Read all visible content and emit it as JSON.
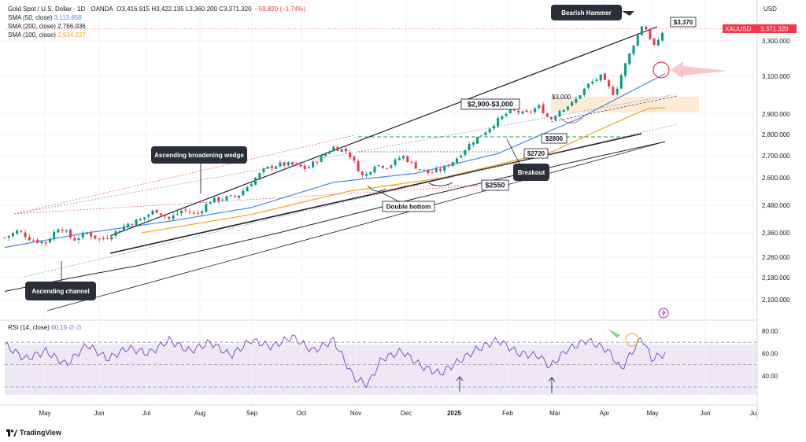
{
  "legend": {
    "symbol": "Gold Spot / U.S. Dollar · 1D · OANDA",
    "ohlc": "O3,416.915  H3,422.135  L3,360.200  C3,371.320",
    "change": "−59.820 (−1.74%)",
    "sma50_label": "SMA (50, close)",
    "sma50_value": "3,113.658",
    "sma200_label": "SMA (200, close)",
    "sma200_value": "2,766.036",
    "sma100_label": "SMA (100, close)",
    "sma100_value": "2,934.237",
    "rsi_label": "RSI (14, close)",
    "rsi_value": "60.15  ∅  ∅"
  },
  "colors": {
    "up": "#089981",
    "down": "#f23645",
    "sma50": "#4a86e8",
    "sma100": "#f5a623",
    "sma200": "#1f1f1f",
    "rsi": "#7e57c2",
    "rsi_band": "#ede7f6",
    "annotation_bg": "#2a2e39",
    "price_badge": "#f23645",
    "zone": "#fde9d2"
  },
  "brand": "TradingView",
  "chart_data": {
    "type": "candlestick",
    "instrument": "XAUUSD",
    "currency_label": "USD",
    "last_price": "3,371.320",
    "x_labels": [
      "May",
      "Jun",
      "Jul",
      "Aug",
      "Sep",
      "Oct",
      "Nov",
      "Dec",
      "2025",
      "Feb",
      "Mar",
      "Apr",
      "May",
      "Jun",
      "Ju"
    ],
    "y_ticks": [
      "3,300.000",
      "3,100.000",
      "2,900.000",
      "2,800.000",
      "2,700.000",
      "2,600.000",
      "2,480.000",
      "2,360.000",
      "2,260.000",
      "2,180.000",
      "2,100.000"
    ],
    "rsi_ticks": [
      "80.00",
      "60.00",
      "40.00"
    ],
    "grid": true,
    "annotations": {
      "bearish_hammer": "Bearish Hammer",
      "price_3370": "$3,370",
      "zone_2900_3000": "$2,900-$3,000",
      "price_3000": "$3,000",
      "price_2800": "$2800",
      "price_2720": "$2720",
      "price_2550": "$2550",
      "breakout": "Breakout",
      "double_bottom": "Double bottom",
      "ascending_broadening_wedge": "Ascending broadening wedge",
      "ascending_channel": "Ascending channel"
    },
    "close_anchors": [
      [
        0,
        2340
      ],
      [
        10,
        2370
      ],
      [
        20,
        2330
      ],
      [
        30,
        2320
      ],
      [
        40,
        2390
      ],
      [
        50,
        2330
      ],
      [
        60,
        2360
      ],
      [
        70,
        2330
      ],
      [
        80,
        2360
      ],
      [
        90,
        2400
      ],
      [
        100,
        2420
      ],
      [
        110,
        2460
      ],
      [
        120,
        2420
      ],
      [
        130,
        2460
      ],
      [
        140,
        2440
      ],
      [
        150,
        2500
      ],
      [
        160,
        2510
      ],
      [
        170,
        2520
      ],
      [
        180,
        2580
      ],
      [
        190,
        2640
      ],
      [
        200,
        2660
      ],
      [
        210,
        2660
      ],
      [
        220,
        2640
      ],
      [
        230,
        2690
      ],
      [
        240,
        2740
      ],
      [
        250,
        2720
      ],
      [
        258,
        2640
      ],
      [
        262,
        2600
      ],
      [
        270,
        2660
      ],
      [
        280,
        2650
      ],
      [
        290,
        2700
      ],
      [
        300,
        2650
      ],
      [
        310,
        2620
      ],
      [
        320,
        2640
      ],
      [
        330,
        2690
      ],
      [
        340,
        2760
      ],
      [
        350,
        2810
      ],
      [
        360,
        2870
      ],
      [
        370,
        2920
      ],
      [
        380,
        2900
      ],
      [
        390,
        2940
      ],
      [
        398,
        2870
      ],
      [
        405,
        2920
      ],
      [
        415,
        2960
      ],
      [
        425,
        3050
      ],
      [
        435,
        3100
      ],
      [
        440,
        3050
      ],
      [
        445,
        3000
      ],
      [
        452,
        3150
      ],
      [
        460,
        3300
      ],
      [
        466,
        3410
      ],
      [
        470,
        3330
      ],
      [
        475,
        3260
      ],
      [
        480,
        3350
      ],
      [
        482,
        3371
      ]
    ],
    "sma50": [
      [
        0,
        2300
      ],
      [
        60,
        2360
      ],
      [
        120,
        2410
      ],
      [
        180,
        2470
      ],
      [
        240,
        2580
      ],
      [
        300,
        2620
      ],
      [
        360,
        2710
      ],
      [
        420,
        2880
      ],
      [
        482,
        3114
      ]
    ],
    "sma100": [
      [
        100,
        2360
      ],
      [
        180,
        2440
      ],
      [
        250,
        2540
      ],
      [
        320,
        2600
      ],
      [
        400,
        2720
      ],
      [
        470,
        2930
      ],
      [
        482,
        2934
      ]
    ],
    "sma200": [
      [
        0,
        2130
      ],
      [
        100,
        2230
      ],
      [
        200,
        2360
      ],
      [
        300,
        2510
      ],
      [
        400,
        2650
      ],
      [
        482,
        2766
      ]
    ],
    "rsi": [
      [
        0,
        68
      ],
      [
        15,
        55
      ],
      [
        30,
        62
      ],
      [
        45,
        50
      ],
      [
        60,
        68
      ],
      [
        75,
        55
      ],
      [
        90,
        65
      ],
      [
        105,
        60
      ],
      [
        120,
        72
      ],
      [
        135,
        62
      ],
      [
        150,
        70
      ],
      [
        165,
        58
      ],
      [
        180,
        72
      ],
      [
        195,
        66
      ],
      [
        210,
        75
      ],
      [
        225,
        62
      ],
      [
        240,
        72
      ],
      [
        255,
        38
      ],
      [
        265,
        32
      ],
      [
        275,
        55
      ],
      [
        290,
        62
      ],
      [
        305,
        48
      ],
      [
        318,
        42
      ],
      [
        330,
        52
      ],
      [
        345,
        64
      ],
      [
        360,
        72
      ],
      [
        375,
        60
      ],
      [
        390,
        58
      ],
      [
        398,
        48
      ],
      [
        410,
        63
      ],
      [
        425,
        72
      ],
      [
        440,
        63
      ],
      [
        450,
        46
      ],
      [
        465,
        75
      ],
      [
        472,
        55
      ],
      [
        482,
        60
      ]
    ]
  }
}
